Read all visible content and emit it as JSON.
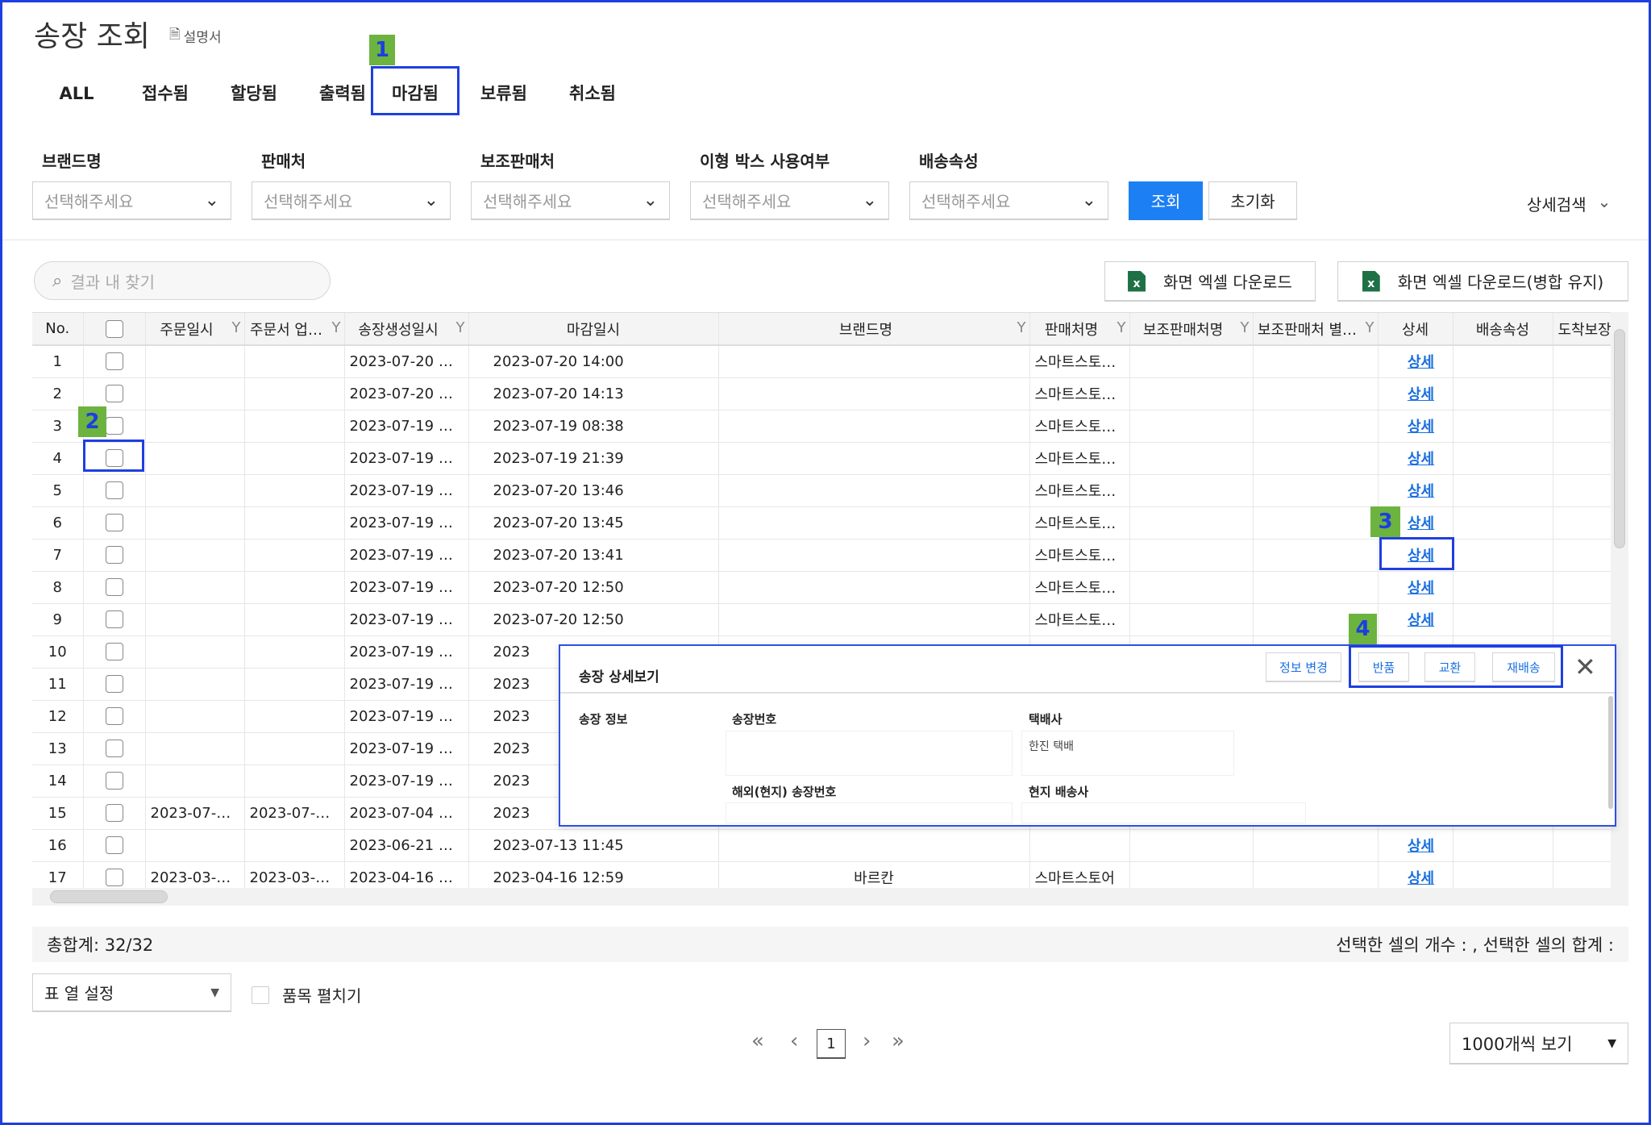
{
  "header": {
    "title": "송장 조회",
    "manual_label": "설명서"
  },
  "tabs": [
    {
      "label": "ALL"
    },
    {
      "label": "접수됨"
    },
    {
      "label": "할당됨"
    },
    {
      "label": "출력됨"
    },
    {
      "label": "마감됨",
      "active": true
    },
    {
      "label": "보류됨"
    },
    {
      "label": "취소됨"
    }
  ],
  "filters": [
    {
      "label": "브랜드명",
      "placeholder": "선택해주세요"
    },
    {
      "label": "판매처",
      "placeholder": "선택해주세요"
    },
    {
      "label": "보조판매처",
      "placeholder": "선택해주세요"
    },
    {
      "label": "이형 박스 사용여부",
      "placeholder": "선택해주세요"
    },
    {
      "label": "배송속성",
      "placeholder": "선택해주세요"
    }
  ],
  "actions": {
    "search": "조회",
    "reset": "초기화",
    "advanced": "상세검색"
  },
  "toolbar": {
    "search_placeholder": "결과 내 찾기",
    "excel_download": "화면 엑셀 다운로드",
    "excel_download_merged": "화면 엑셀 다운로드(병합 유지)"
  },
  "table": {
    "columns": [
      "No.",
      "",
      "주문일시",
      "주문서 업…",
      "송장생성일시",
      "마감일시",
      "브랜드명",
      "판매처명",
      "보조판매처명",
      "보조판매처 별…",
      "상세",
      "배송속성",
      "도착보장"
    ],
    "filterable": [
      false,
      false,
      true,
      true,
      true,
      false,
      true,
      true,
      true,
      true,
      false,
      false,
      false
    ],
    "rows": [
      [
        "1",
        "",
        "",
        "2023-07-20 …",
        "2023-07-20 14:00",
        "",
        "스마트스토…",
        "",
        "",
        "상세",
        "",
        ""
      ],
      [
        "2",
        "",
        "",
        "2023-07-20 …",
        "2023-07-20 14:13",
        "",
        "스마트스토…",
        "",
        "",
        "상세",
        "",
        ""
      ],
      [
        "3",
        "",
        "",
        "2023-07-19 …",
        "2023-07-19 08:38",
        "",
        "스마트스토…",
        "",
        "",
        "상세",
        "",
        ""
      ],
      [
        "4",
        "",
        "",
        "2023-07-19 …",
        "2023-07-19 21:39",
        "",
        "스마트스토…",
        "",
        "",
        "상세",
        "",
        ""
      ],
      [
        "5",
        "",
        "",
        "2023-07-19 …",
        "2023-07-20 13:46",
        "",
        "스마트스토…",
        "",
        "",
        "상세",
        "",
        ""
      ],
      [
        "6",
        "",
        "",
        "2023-07-19 …",
        "2023-07-20 13:45",
        "",
        "스마트스토…",
        "",
        "",
        "상세",
        "",
        ""
      ],
      [
        "7",
        "",
        "",
        "2023-07-19 …",
        "2023-07-20 13:41",
        "",
        "스마트스토…",
        "",
        "",
        "상세",
        "",
        ""
      ],
      [
        "8",
        "",
        "",
        "2023-07-19 …",
        "2023-07-20 12:50",
        "",
        "스마트스토…",
        "",
        "",
        "상세",
        "",
        ""
      ],
      [
        "9",
        "",
        "",
        "2023-07-19 …",
        "2023-07-20 12:50",
        "",
        "스마트스토…",
        "",
        "",
        "상세",
        "",
        ""
      ],
      [
        "10",
        "",
        "",
        "2023-07-19 …",
        "2023",
        "",
        "",
        "",
        "",
        "",
        "",
        ""
      ],
      [
        "11",
        "",
        "",
        "2023-07-19 …",
        "2023",
        "",
        "",
        "",
        "",
        "",
        "",
        ""
      ],
      [
        "12",
        "",
        "",
        "2023-07-19 …",
        "2023",
        "",
        "",
        "",
        "",
        "",
        "",
        ""
      ],
      [
        "13",
        "",
        "",
        "2023-07-19 …",
        "2023",
        "",
        "",
        "",
        "",
        "",
        "",
        ""
      ],
      [
        "14",
        "",
        "",
        "2023-07-19 …",
        "2023",
        "",
        "",
        "",
        "",
        "",
        "",
        ""
      ],
      [
        "15",
        "2023-07-…",
        "2023-07-…",
        "2023-07-04 …",
        "2023",
        "",
        "",
        "",
        "",
        "",
        "",
        ""
      ],
      [
        "16",
        "",
        "",
        "2023-06-21 …",
        "2023-07-13 11:45",
        "",
        "",
        "",
        "",
        "상세",
        "",
        ""
      ],
      [
        "17",
        "2023-03-…",
        "2023-03-…",
        "2023-04-16 …",
        "2023-04-16 12:59",
        "바르칸",
        "스마트스토어",
        "",
        "",
        "상세",
        "",
        ""
      ]
    ]
  },
  "modal": {
    "title": "송장 상세보기",
    "buttons": {
      "edit": "정보 변경",
      "return": "반품",
      "exchange": "교환",
      "resend": "재배송"
    },
    "section": "송장 정보",
    "fields": {
      "invoice_no_label": "송장번호",
      "invoice_no": "",
      "courier_label": "택배사",
      "courier": "한진 택배",
      "overseas_no_label": "해외(현지) 송장번호",
      "overseas_no": "",
      "local_courier_label": "현지 배송사",
      "local_courier": ""
    }
  },
  "footer": {
    "total": "총합계: 32/32",
    "selection": "선택한 셀의 개수 : , 선택한 셀의 합계 :",
    "column_settings": "표 열 설정",
    "expand_items": "품목 펼치기",
    "page": "1",
    "page_size": "1000개씩 보기"
  },
  "annotations": [
    "1",
    "2",
    "3",
    "4"
  ],
  "colors": {
    "primary": "#1d7ff4",
    "link": "#1a6fe0",
    "annotation_box": "#1f3fe0",
    "annotation_label": "#6db33f"
  }
}
